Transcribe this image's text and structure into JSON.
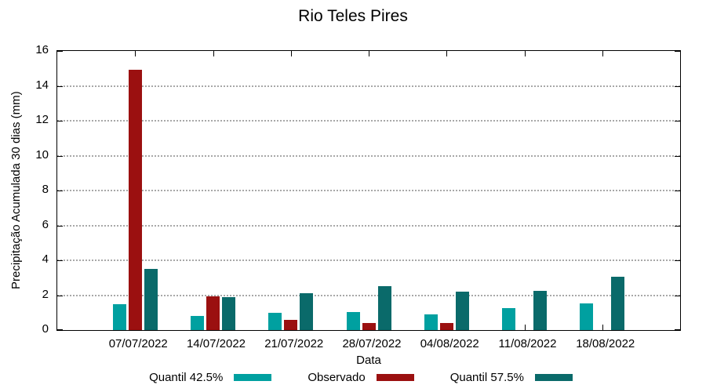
{
  "chart_data": {
    "type": "bar",
    "title": "Rio Teles Pires",
    "xlabel": "Data",
    "ylabel": "Precipitação Acumulada 30 dias (mm)",
    "categories": [
      "07/07/2022",
      "14/07/2022",
      "21/07/2022",
      "28/07/2022",
      "04/08/2022",
      "11/08/2022",
      "18/08/2022"
    ],
    "series": [
      {
        "name": "Quantil 42.5%",
        "color": "#00A0A0",
        "values": [
          1.5,
          0.8,
          1.0,
          1.05,
          0.9,
          1.25,
          1.55
        ]
      },
      {
        "name": "Observado",
        "color": "#9B1010",
        "values": [
          14.9,
          1.95,
          0.6,
          0.4,
          0.4,
          0,
          0
        ]
      },
      {
        "name": "Quantil 57.5%",
        "color": "#0A6A6A",
        "values": [
          3.5,
          1.9,
          2.1,
          2.5,
          2.2,
          2.25,
          3.05
        ]
      }
    ],
    "ylim": [
      0,
      16
    ],
    "yticks": [
      0,
      2,
      4,
      6,
      8,
      10,
      12,
      14,
      16
    ],
    "grid": "horizontal dotted",
    "legend_position": "bottom-center",
    "frame": "full box with mirrored ticks"
  }
}
